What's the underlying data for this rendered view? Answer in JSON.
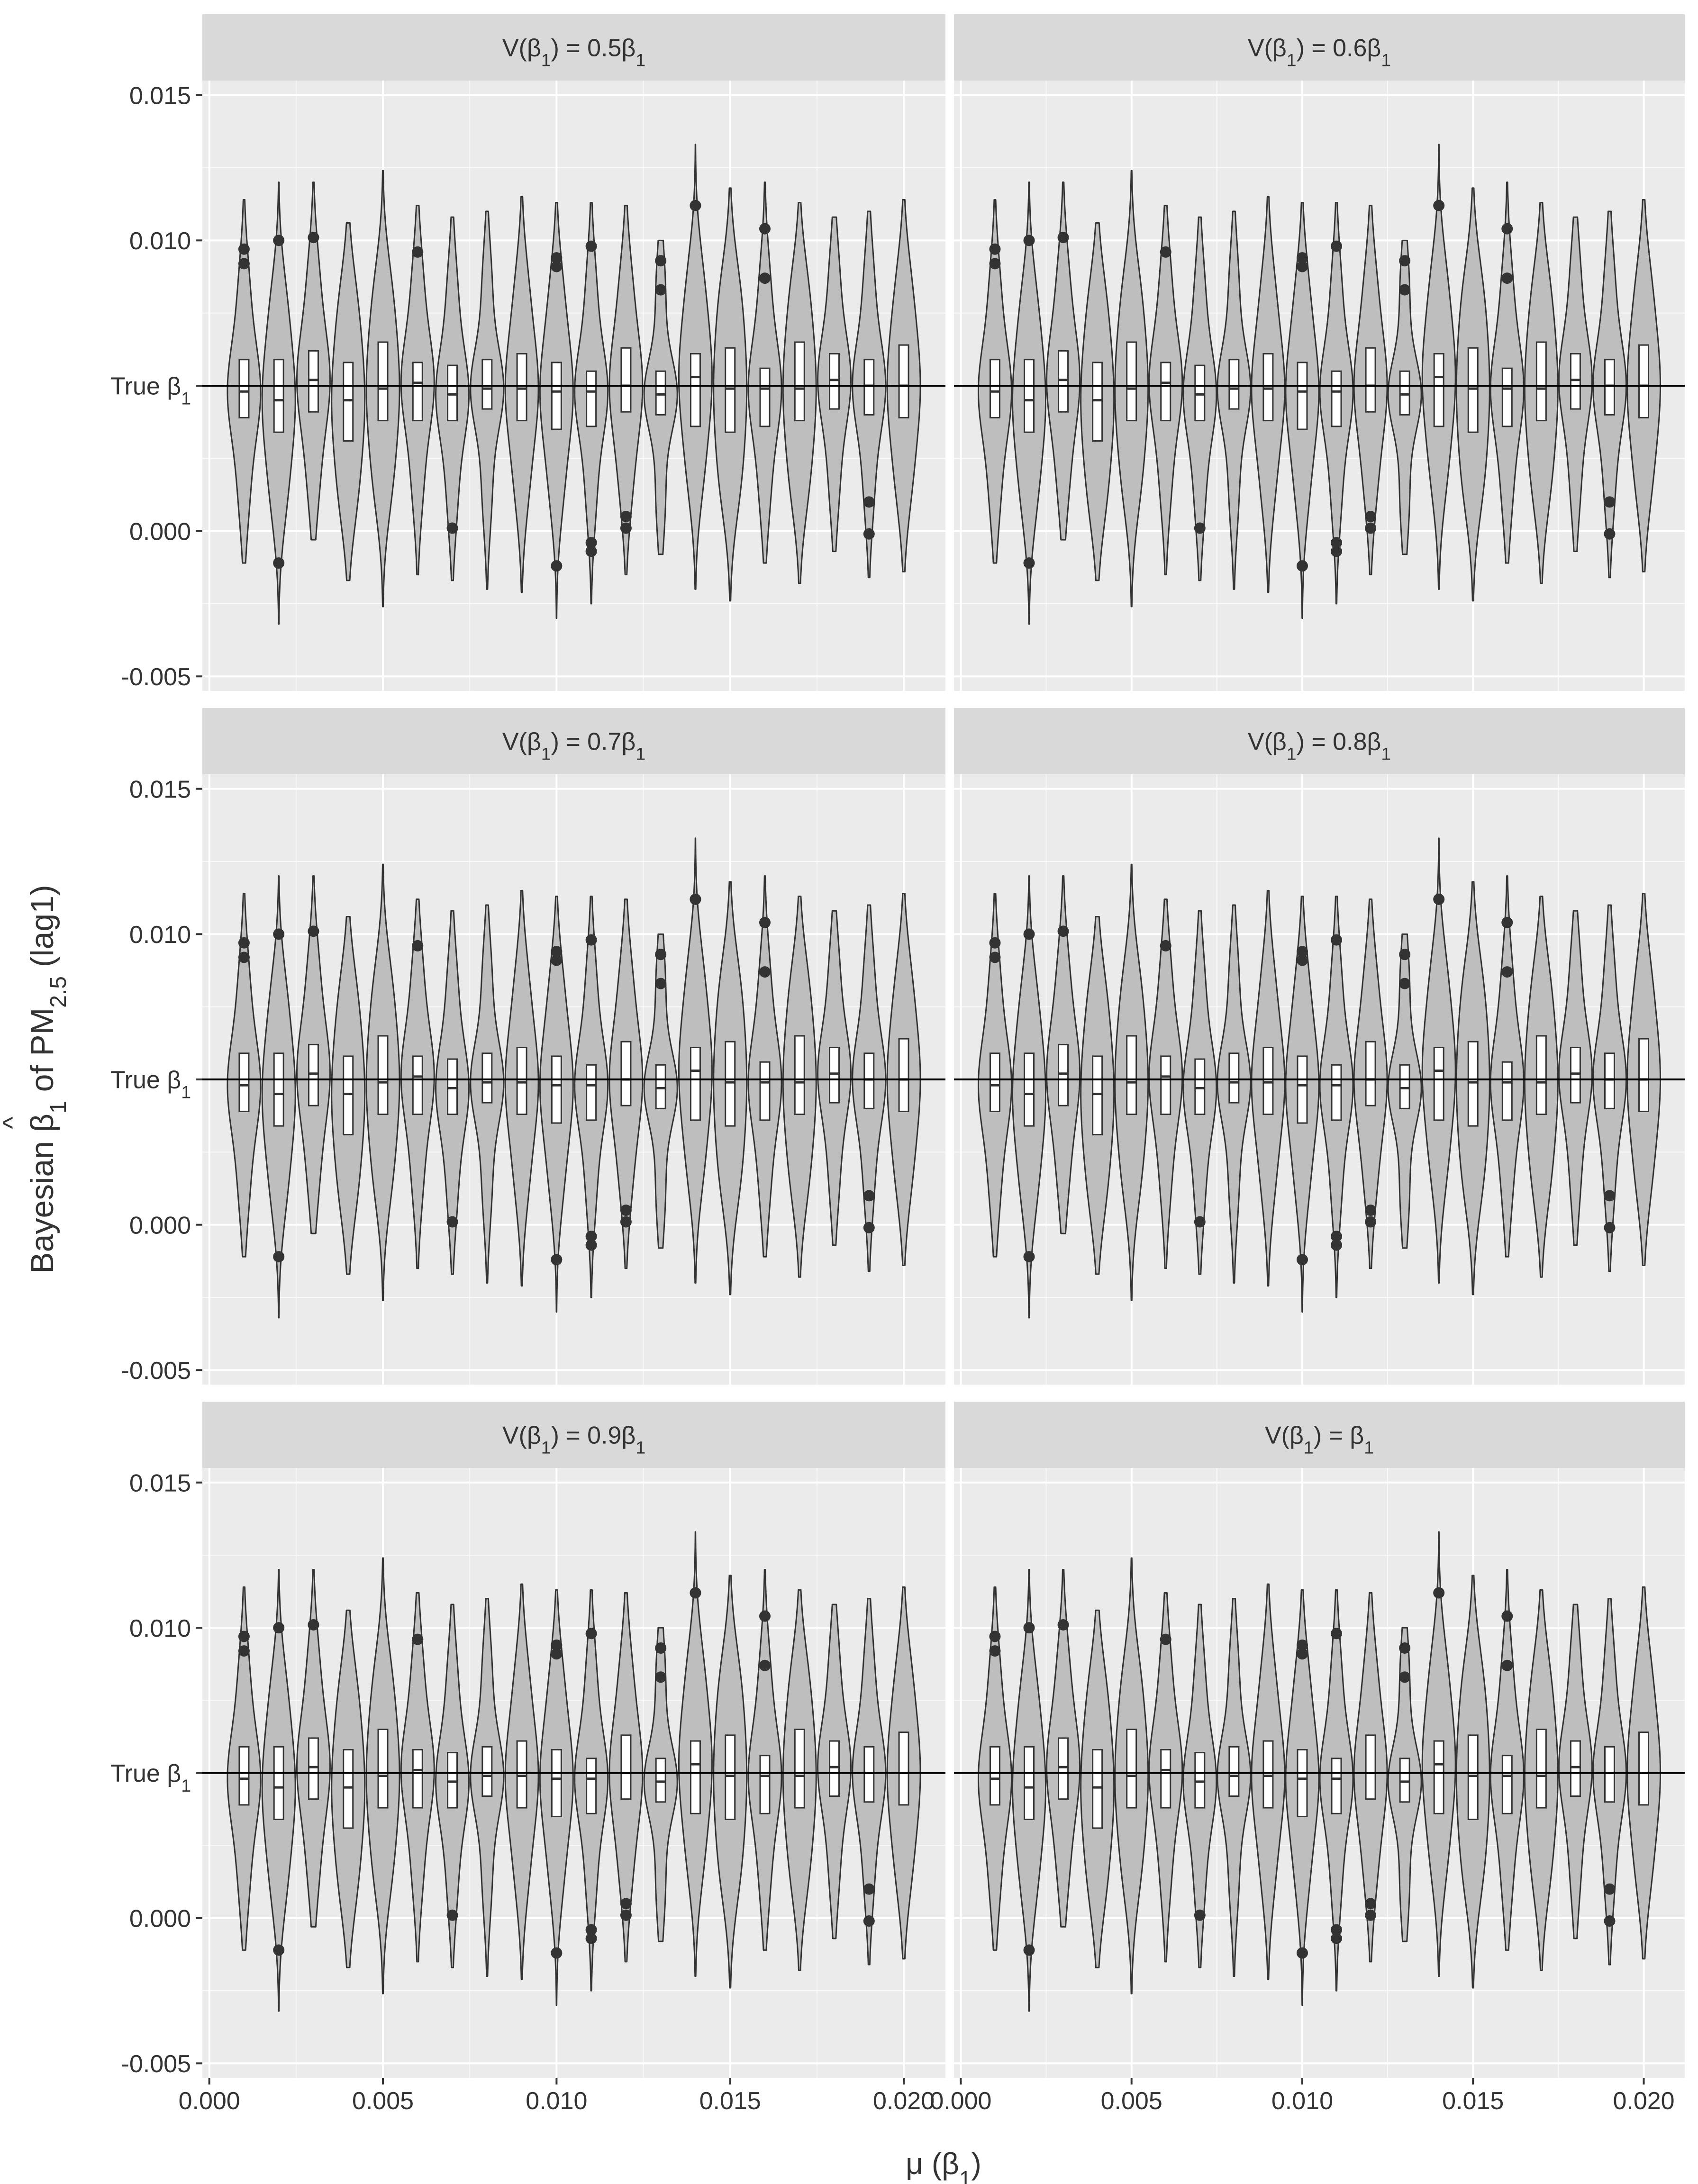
{
  "chart_data": {
    "type": "violin",
    "ylabel": "Bayesian β̂1 of PM2.5 (lag1)",
    "ylabel_parts": {
      "prefix": "Bayesian ",
      "beta": "β",
      "hat": "^",
      "beta_sub": "1",
      "mid": " of PM",
      "pm_sub": "2.5",
      "suffix": " (lag1)"
    },
    "xlabel": "μ (β1)",
    "xlabel_parts": {
      "main": "μ (β",
      "sub": "1",
      "end": ")"
    },
    "x": [
      0.001,
      0.002,
      0.003,
      0.004,
      0.005,
      0.006,
      0.007,
      0.008,
      0.009,
      0.01,
      0.011,
      0.012,
      0.013,
      0.014,
      0.015,
      0.016,
      0.017,
      0.018,
      0.019,
      0.02
    ],
    "xlim": [
      -0.0002,
      0.0212
    ],
    "ylim": [
      -0.0055,
      0.0155
    ],
    "x_ticks": [
      0.0,
      0.005,
      0.01,
      0.015,
      0.02
    ],
    "x_tick_labels": [
      "0.000",
      "0.005",
      "0.010",
      "0.015",
      "0.020"
    ],
    "y_ticks": [
      -0.005,
      0.0,
      0.005,
      0.01,
      0.015
    ],
    "y_tick_labels": [
      "-0.005",
      "0.000",
      "True β1",
      "0.010",
      "0.015"
    ],
    "true_beta": 0.005,
    "true_label": {
      "main": "True β",
      "sub": "1"
    },
    "facets": [
      {
        "label": "V(β1) = 0.5β1",
        "parts": {
          "a": "V(β",
          "a_sub": "1",
          "b": ") = 0.5β",
          "b_sub": "1"
        }
      },
      {
        "label": "V(β1) = 0.6β1",
        "parts": {
          "a": "V(β",
          "a_sub": "1",
          "b": ") = 0.6β",
          "b_sub": "1"
        }
      },
      {
        "label": "V(β1) = 0.7β1",
        "parts": {
          "a": "V(β",
          "a_sub": "1",
          "b": ") = 0.7β",
          "b_sub": "1"
        }
      },
      {
        "label": "V(β1) = 0.8β1",
        "parts": {
          "a": "V(β",
          "a_sub": "1",
          "b": ") = 0.8β",
          "b_sub": "1"
        }
      },
      {
        "label": "V(β1) = 0.9β1",
        "parts": {
          "a": "V(β",
          "a_sub": "1",
          "b": ") = 0.9β",
          "b_sub": "1"
        }
      },
      {
        "label": "V(β1) = β1",
        "parts": {
          "a": "V(β",
          "a_sub": "1",
          "b": ") = β",
          "b_sub": "1"
        }
      }
    ],
    "violins": [
      {
        "min": -0.0011,
        "max": 0.0114,
        "q1": 0.0039,
        "median": 0.0048,
        "q3": 0.0059,
        "outliers": [
          0.0092,
          0.0097
        ]
      },
      {
        "min": -0.0032,
        "max": 0.012,
        "q1": 0.0034,
        "median": 0.0045,
        "q3": 0.0059,
        "outliers": [
          0.01,
          -0.0011
        ]
      },
      {
        "min": -0.0003,
        "max": 0.012,
        "q1": 0.0041,
        "median": 0.0052,
        "q3": 0.0062,
        "outliers": [
          0.0101
        ]
      },
      {
        "min": -0.0017,
        "max": 0.0106,
        "q1": 0.0031,
        "median": 0.0045,
        "q3": 0.0058,
        "outliers": []
      },
      {
        "min": -0.0026,
        "max": 0.0124,
        "q1": 0.0038,
        "median": 0.0049,
        "q3": 0.0065,
        "outliers": []
      },
      {
        "min": -0.0015,
        "max": 0.0112,
        "q1": 0.0038,
        "median": 0.0051,
        "q3": 0.0058,
        "outliers": [
          0.0096
        ]
      },
      {
        "min": -0.0017,
        "max": 0.0108,
        "q1": 0.0038,
        "median": 0.0047,
        "q3": 0.0057,
        "outliers": [
          0.0001
        ]
      },
      {
        "min": -0.002,
        "max": 0.011,
        "q1": 0.0042,
        "median": 0.0049,
        "q3": 0.0059,
        "outliers": []
      },
      {
        "min": -0.0021,
        "max": 0.0115,
        "q1": 0.0038,
        "median": 0.0049,
        "q3": 0.0061,
        "outliers": []
      },
      {
        "min": -0.003,
        "max": 0.0113,
        "q1": 0.0035,
        "median": 0.0048,
        "q3": 0.0058,
        "outliers": [
          0.0094,
          0.0091,
          -0.0012
        ]
      },
      {
        "min": -0.0025,
        "max": 0.0113,
        "q1": 0.0036,
        "median": 0.0048,
        "q3": 0.0055,
        "outliers": [
          0.0098,
          -0.0004,
          -0.0007
        ]
      },
      {
        "min": -0.0015,
        "max": 0.0112,
        "q1": 0.0041,
        "median": 0.005,
        "q3": 0.0063,
        "outliers": [
          0.0005,
          0.0001
        ]
      },
      {
        "min": -0.0008,
        "max": 0.01,
        "q1": 0.004,
        "median": 0.0047,
        "q3": 0.0055,
        "outliers": [
          0.0093,
          0.0083
        ]
      },
      {
        "min": -0.002,
        "max": 0.0133,
        "q1": 0.0036,
        "median": 0.0053,
        "q3": 0.0061,
        "outliers": [
          0.0112
        ]
      },
      {
        "min": -0.0024,
        "max": 0.0118,
        "q1": 0.0034,
        "median": 0.0049,
        "q3": 0.0063,
        "outliers": []
      },
      {
        "min": -0.0011,
        "max": 0.012,
        "q1": 0.0036,
        "median": 0.0049,
        "q3": 0.0056,
        "outliers": [
          0.0104,
          0.0087
        ]
      },
      {
        "min": -0.0018,
        "max": 0.0113,
        "q1": 0.0038,
        "median": 0.0049,
        "q3": 0.0065,
        "outliers": []
      },
      {
        "min": -0.0007,
        "max": 0.0108,
        "q1": 0.0042,
        "median": 0.0052,
        "q3": 0.0061,
        "outliers": []
      },
      {
        "min": -0.0016,
        "max": 0.011,
        "q1": 0.004,
        "median": 0.005,
        "q3": 0.0059,
        "outliers": [
          0.001,
          -0.0001
        ]
      },
      {
        "min": -0.0014,
        "max": 0.0114,
        "q1": 0.0039,
        "median": 0.005,
        "q3": 0.0064,
        "outliers": []
      }
    ],
    "colors": {
      "panel_bg": "#EBEBEB",
      "strip_bg": "#D9D9D9",
      "grid_major": "#FFFFFF",
      "violin_fill": "#BEBEBE",
      "stroke": "#333333",
      "text": "#333333",
      "tick_text": "#4D4D4D",
      "reference_line": "#000000",
      "box_fill": "#FFFFFF"
    }
  }
}
